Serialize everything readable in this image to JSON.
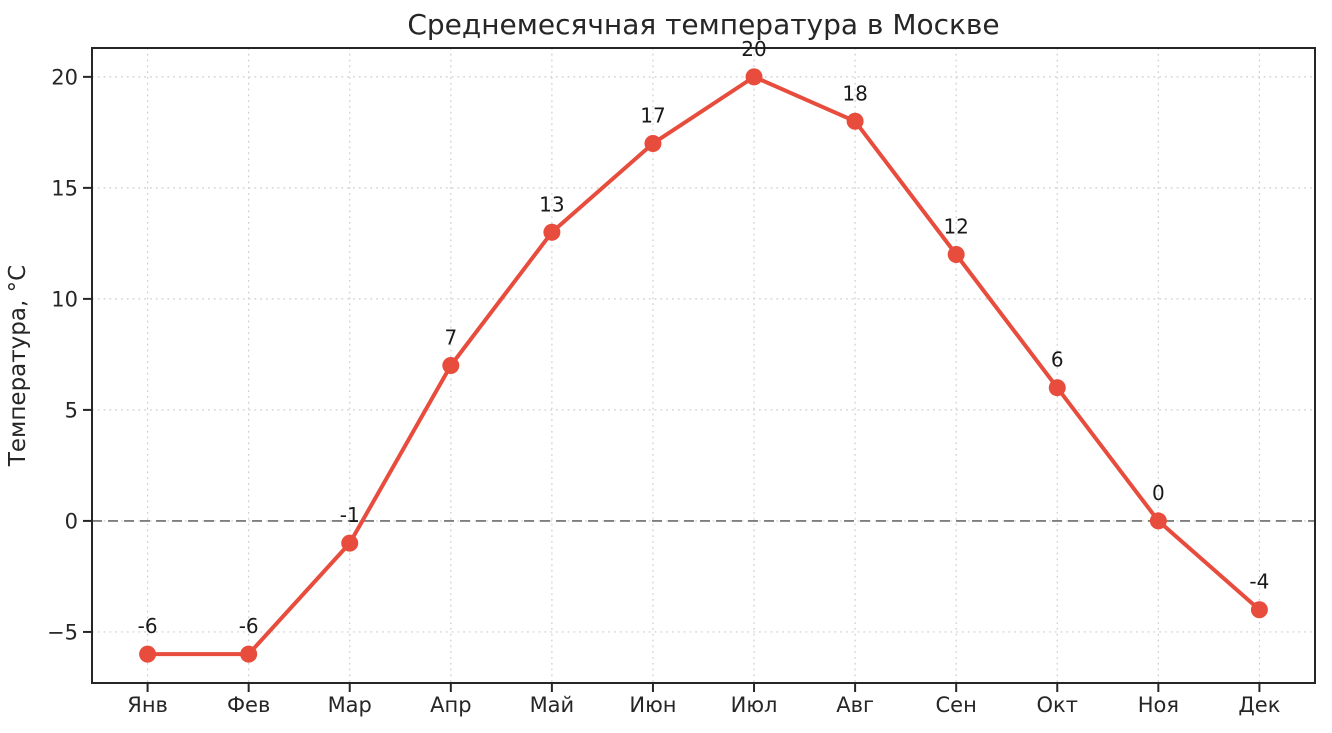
{
  "chart_data": {
    "type": "line",
    "title": "Среднемесячная температура в Москве",
    "ylabel": "Температура, °C",
    "xlabel": "",
    "categories": [
      "Янв",
      "Фев",
      "Мар",
      "Апр",
      "Май",
      "Июн",
      "Июл",
      "Авг",
      "Сен",
      "Окт",
      "Ноя",
      "Дек"
    ],
    "values": [
      -6,
      -6,
      -1,
      7,
      13,
      17,
      20,
      18,
      12,
      6,
      0,
      -4
    ],
    "point_labels": [
      "-6",
      "-6",
      "-1",
      "7",
      "13",
      "17",
      "20",
      "18",
      "12",
      "6",
      "0",
      "-4"
    ],
    "yticks": [
      20,
      15,
      10,
      5,
      0,
      -5
    ],
    "ytick_labels": [
      "20",
      "15",
      "10",
      "5",
      "0",
      "−5"
    ],
    "ylim": [
      -7.3,
      21.3
    ],
    "xlim": [
      -0.55,
      11.55
    ],
    "grid": true,
    "grid_style": "dotted",
    "zero_line": true,
    "legend": "none",
    "colors": {
      "line": "#e74c3c",
      "marker": "#e74c3c",
      "grid": "#c9c9c9",
      "zero_line": "#7f7f7f",
      "spine": "#262626",
      "text": "#262626",
      "background": "#ffffff"
    }
  }
}
